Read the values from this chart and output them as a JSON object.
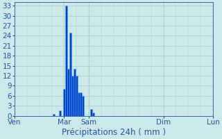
{
  "ylabel_values": [
    0,
    3,
    6,
    9,
    12,
    15,
    18,
    21,
    24,
    27,
    30,
    33
  ],
  "ylim": [
    0,
    34
  ],
  "background_color": "#cce8e8",
  "grid_color": "#aacccc",
  "bar_color": "#0044cc",
  "bar_edge_color": "#55aaff",
  "xlabel": "Précipitations 24h ( mm )",
  "xlabel_color": "#2255aa",
  "tick_label_color": "#2255aa",
  "label_fontsize": 8.5,
  "tick_fontsize": 7.5,
  "n_total": 96,
  "day_tick_positions": [
    0,
    24,
    36,
    72,
    96
  ],
  "day_tick_labels": [
    "Ven",
    "Mar",
    "Sam",
    "Dim",
    "Lun"
  ],
  "bar_positions": [
    19,
    22,
    24,
    25,
    26,
    27,
    28,
    29,
    30,
    31,
    32,
    33,
    37,
    38
  ],
  "bar_heights": [
    0.5,
    1.5,
    8,
    33,
    14,
    25,
    12,
    14,
    12,
    7,
    7,
    6,
    2,
    1
  ]
}
